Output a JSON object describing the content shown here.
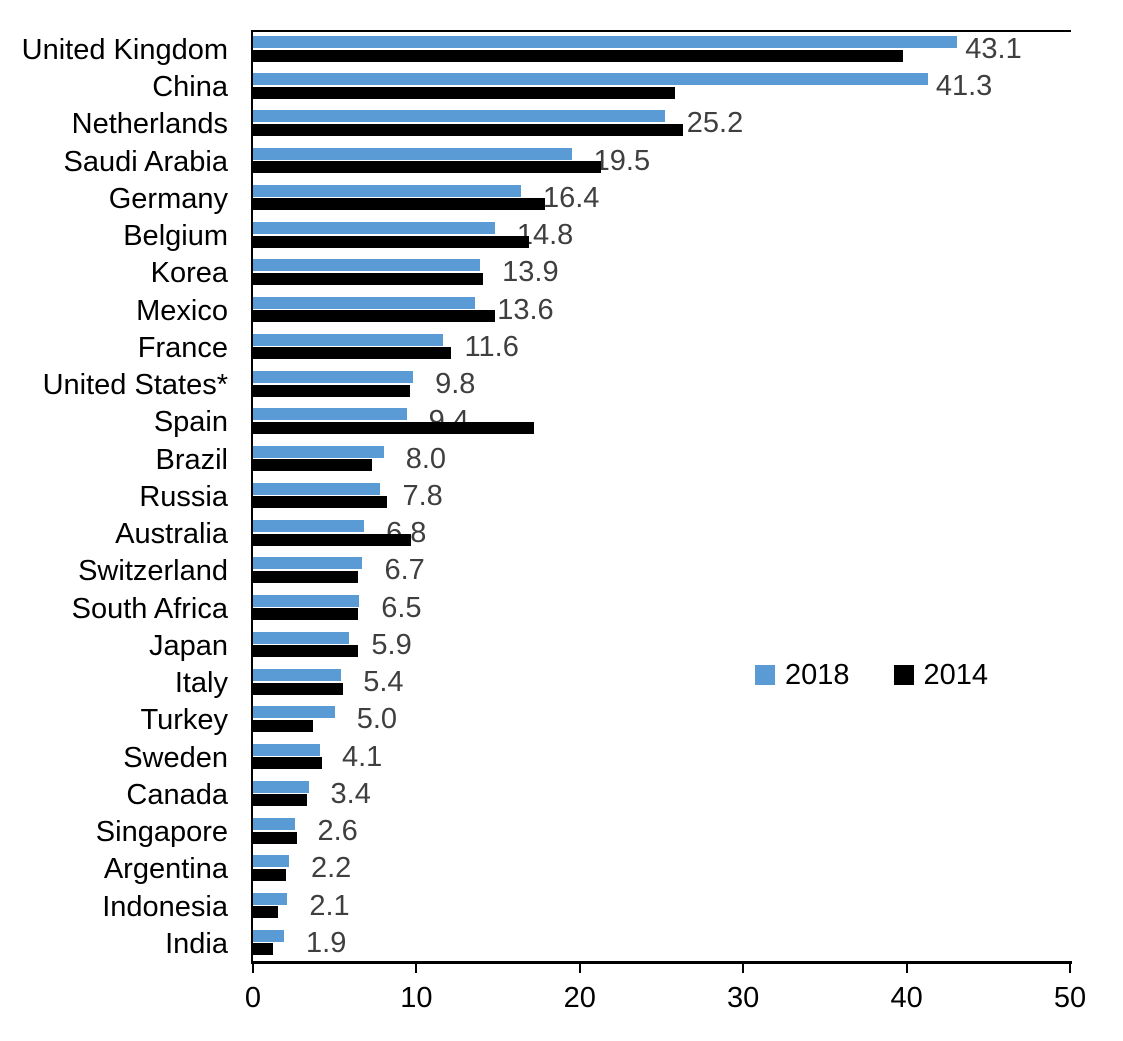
{
  "chart_data": {
    "type": "bar",
    "orientation": "horizontal",
    "categories": [
      "United Kingdom",
      "China",
      "Netherlands",
      "Saudi Arabia",
      "Germany",
      "Belgium",
      "Korea",
      "Mexico",
      "France",
      "United States*",
      "Spain",
      "Brazil",
      "Russia",
      "Australia",
      "Switzerland",
      "South Africa",
      "Japan",
      "Italy",
      "Turkey",
      "Sweden",
      "Canada",
      "Singapore",
      "Argentina",
      "Indonesia",
      "India"
    ],
    "series": [
      {
        "name": "2018",
        "color": "#5b9bd5",
        "values": [
          43.1,
          41.3,
          25.2,
          19.5,
          16.4,
          14.8,
          13.9,
          13.6,
          11.6,
          9.8,
          9.4,
          8.0,
          7.8,
          6.8,
          6.7,
          6.5,
          5.9,
          5.4,
          5.0,
          4.1,
          3.4,
          2.6,
          2.2,
          2.1,
          1.9
        ],
        "data_labels": [
          "43.1",
          "41.3",
          "25.2",
          "19.5",
          "16.4",
          "14.8",
          "13.9",
          "13.6",
          "11.6",
          "9.8",
          "9.4",
          "8.0",
          "7.8",
          "6.8",
          "6.7",
          "6.5",
          "5.9",
          "5.4",
          "5.0",
          "4.1",
          "3.4",
          "2.6",
          "2.2",
          "2.1",
          "1.9"
        ]
      },
      {
        "name": "2014",
        "color": "#000000",
        "values": [
          39.8,
          25.8,
          26.3,
          21.3,
          17.9,
          16.9,
          14.1,
          14.8,
          12.1,
          9.6,
          17.2,
          7.3,
          8.2,
          9.7,
          6.4,
          6.4,
          6.4,
          5.5,
          3.7,
          4.2,
          3.3,
          2.7,
          2.0,
          1.5,
          1.2
        ],
        "data_labels": []
      }
    ],
    "title": "",
    "xlabel": "",
    "ylabel": "",
    "xlim": [
      0,
      50
    ],
    "x_ticks": [
      "0",
      "10",
      "20",
      "30",
      "40",
      "50"
    ],
    "x_tick_values": [
      0,
      10,
      20,
      30,
      40,
      50
    ],
    "grid": "off",
    "legend_position": "middle-right",
    "data_label_color": "#3f3f3f",
    "axis_color": "#000000"
  }
}
